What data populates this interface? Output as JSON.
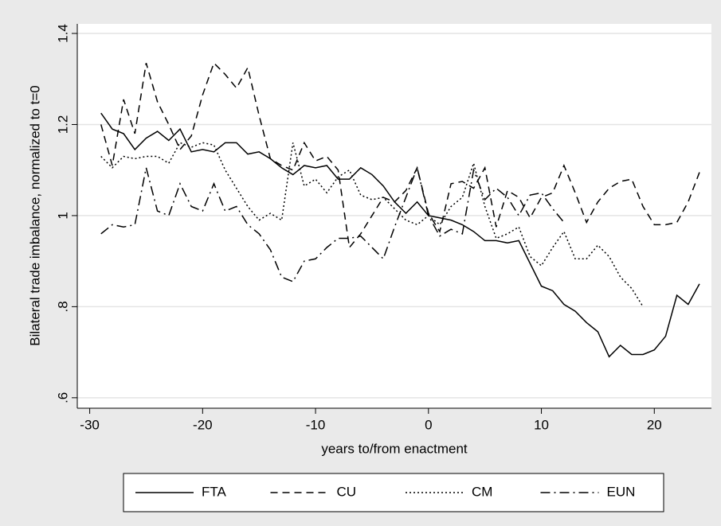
{
  "chart_data": {
    "type": "line",
    "x_label": "years to/from enactment",
    "y_label": "Bilateral trade imbalance, normalized to t=0",
    "x": [
      -29,
      -28,
      -27,
      -26,
      -25,
      -24,
      -23,
      -22,
      -21,
      -20,
      -19,
      -18,
      -17,
      -16,
      -15,
      -14,
      -13,
      -12,
      -11,
      -10,
      -9,
      -8,
      -7,
      -6,
      -5,
      -4,
      -3,
      -2,
      -1,
      0,
      1,
      2,
      3,
      4,
      5,
      6,
      7,
      8,
      9,
      10,
      11,
      12,
      13,
      14,
      15,
      16,
      17,
      18,
      19,
      20,
      21,
      22,
      23,
      24
    ],
    "series": [
      {
        "name": "FTA",
        "color": "#000000",
        "line_style": "solid",
        "values": [
          1.225,
          1.19,
          1.18,
          1.145,
          1.17,
          1.185,
          1.165,
          1.19,
          1.14,
          1.145,
          1.14,
          1.16,
          1.16,
          1.135,
          1.14,
          1.125,
          1.105,
          1.09,
          1.11,
          1.105,
          1.11,
          1.08,
          1.08,
          1.105,
          1.09,
          1.065,
          1.03,
          1.005,
          1.03,
          1.0,
          0.995,
          0.99,
          0.98,
          0.965,
          0.945,
          0.945,
          0.94,
          0.945,
          0.895,
          0.845,
          0.835,
          0.805,
          0.79,
          0.765,
          0.745,
          0.69,
          0.715,
          0.695,
          0.695,
          0.705,
          0.735,
          0.825,
          0.805,
          0.85
        ]
      },
      {
        "name": "CU",
        "color": "#000000",
        "line_style": "dashed",
        "values": [
          1.2,
          1.11,
          1.255,
          1.18,
          1.335,
          1.25,
          1.2,
          1.145,
          1.175,
          1.265,
          1.335,
          1.31,
          1.28,
          1.325,
          1.22,
          1.125,
          1.11,
          1.1,
          1.16,
          1.12,
          1.13,
          1.1,
          0.93,
          0.96,
          1.0,
          1.04,
          1.03,
          1.055,
          1.105,
          1.005,
          0.965,
          1.07,
          1.075,
          1.06,
          1.105,
          0.975,
          1.055,
          1.04,
          0.995,
          1.04,
          1.05,
          1.11,
          1.05,
          0.985,
          1.03,
          1.06,
          1.075,
          1.08,
          1.02,
          0.98,
          0.98,
          0.985,
          1.03,
          1.095
        ]
      },
      {
        "name": "CM",
        "color": "#000000",
        "line_style": "dotted",
        "values": [
          1.13,
          1.105,
          1.13,
          1.125,
          1.13,
          1.13,
          1.115,
          1.16,
          1.15,
          1.16,
          1.155,
          1.1,
          1.06,
          1.02,
          0.99,
          1.005,
          0.99,
          1.16,
          1.065,
          1.08,
          1.05,
          1.085,
          1.1,
          1.045,
          1.035,
          1.04,
          1.015,
          0.99,
          0.98,
          1.0,
          0.98,
          1.02,
          1.04,
          1.115,
          1.02,
          0.95,
          0.96,
          0.975,
          0.91,
          0.89,
          0.93,
          0.965,
          0.905,
          0.905,
          0.935,
          0.91,
          0.865,
          0.84,
          0.8,
          null,
          null,
          null,
          null,
          null
        ]
      },
      {
        "name": "EUN",
        "color": "#000000",
        "line_style": "dashdot",
        "values": [
          0.96,
          0.98,
          0.975,
          0.98,
          1.105,
          1.01,
          1.0,
          1.07,
          1.02,
          1.01,
          1.07,
          1.01,
          1.02,
          0.98,
          0.96,
          0.925,
          0.865,
          0.855,
          0.9,
          0.905,
          0.93,
          0.95,
          0.95,
          0.955,
          0.93,
          0.905,
          0.975,
          1.04,
          1.105,
          1.0,
          0.955,
          0.97,
          0.96,
          1.1,
          1.035,
          1.06,
          1.04,
          1.0,
          1.045,
          1.05,
          1.015,
          0.985,
          null,
          null,
          null,
          null,
          null,
          null,
          null,
          null,
          null,
          null,
          null,
          null
        ]
      }
    ],
    "xlim": [
      -31.1,
      25.06
    ],
    "ylim": [
      0.577,
      1.421
    ],
    "xticks": [
      -30,
      -20,
      -10,
      0,
      10,
      20
    ],
    "yticks": [
      {
        "value": 0.6,
        "label": ".6"
      },
      {
        "value": 0.8,
        "label": ".8"
      },
      1,
      1.2,
      1.4
    ],
    "grid": true,
    "legend": "bottom"
  }
}
